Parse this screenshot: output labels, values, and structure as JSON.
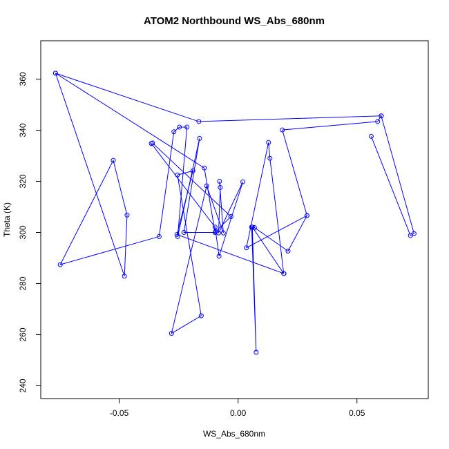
{
  "chart_data": {
    "type": "line",
    "title": "ATOM2 Northbound WS_Abs_680nm",
    "xlabel": "WS_Abs_680nm",
    "ylabel": "Theta (K)",
    "xlim": [
      -0.083,
      0.08
    ],
    "ylim": [
      235,
      375
    ],
    "x_ticks": [
      -0.05,
      0.0,
      0.05
    ],
    "x_tick_labels": [
      "-0.05",
      "0.00",
      "0.05"
    ],
    "y_ticks": [
      240,
      260,
      280,
      300,
      320,
      340,
      360
    ],
    "y_tick_labels": [
      "240",
      "260",
      "280",
      "300",
      "320",
      "340",
      "360"
    ],
    "grid": false,
    "line_color": "#0000ff",
    "marker": "open-circle",
    "series": [
      {
        "points": [
          {
            "x": -0.0768,
            "y": 362.3
          },
          {
            "x": -0.0478,
            "y": 282.9
          },
          {
            "x": -0.0467,
            "y": 306.8
          },
          {
            "x": -0.0525,
            "y": 328.2
          },
          {
            "x": -0.0748,
            "y": 287.4
          },
          {
            "x": -0.0332,
            "y": 298.4
          },
          {
            "x": -0.027,
            "y": 339.4
          },
          {
            "x": -0.0247,
            "y": 341.2
          },
          {
            "x": -0.0215,
            "y": 341.2
          },
          {
            "x": -0.0254,
            "y": 298.4
          },
          {
            "x": -0.0162,
            "y": 336.8
          },
          {
            "x": -0.0228,
            "y": 300.0
          },
          {
            "x": -0.0097,
            "y": 300.0
          },
          {
            "x": -0.0142,
            "y": 325.2
          },
          {
            "x": -0.0768,
            "y": 362.3
          },
          {
            "x": -0.0165,
            "y": 343.4
          },
          {
            "x": 0.0602,
            "y": 345.6
          },
          {
            "x": 0.0587,
            "y": 343.4
          },
          {
            "x": 0.0186,
            "y": 340.1
          },
          {
            "x": 0.029,
            "y": 306.6
          },
          {
            "x": 0.021,
            "y": 292.7
          },
          {
            "x": 0.0069,
            "y": 301.9
          },
          {
            "x": 0.0057,
            "y": 302.1
          },
          {
            "x": 0.0076,
            "y": 253.1
          },
          {
            "x": 0.006,
            "y": 302.1
          },
          {
            "x": 0.0192,
            "y": 283.9
          },
          {
            "x": 0.0134,
            "y": 329.0
          },
          {
            "x": 0.0128,
            "y": 335.2
          },
          {
            "x": 0.0035,
            "y": 294.0
          },
          {
            "x": 0.029,
            "y": 306.6
          }
        ]
      },
      {
        "points": [
          {
            "x": -0.0365,
            "y": 334.8
          },
          {
            "x": -0.0097,
            "y": 302.1
          },
          {
            "x": -0.008,
            "y": 290.7
          },
          {
            "x": 0.002,
            "y": 319.8
          },
          {
            "x": -0.0082,
            "y": 299.8
          },
          {
            "x": -0.0075,
            "y": 317.6
          },
          {
            "x": -0.0078,
            "y": 320.0
          },
          {
            "x": -0.0062,
            "y": 299.8
          },
          {
            "x": -0.0132,
            "y": 318.2
          },
          {
            "x": -0.028,
            "y": 260.5
          },
          {
            "x": -0.0155,
            "y": 267.4
          },
          {
            "x": -0.0255,
            "y": 322.5
          },
          {
            "x": -0.019,
            "y": 324.1
          },
          {
            "x": -0.0257,
            "y": 299.2
          },
          {
            "x": 0.0193,
            "y": 283.9
          }
        ]
      },
      {
        "points": [
          {
            "x": 0.056,
            "y": 337.6
          },
          {
            "x": 0.0725,
            "y": 298.8
          },
          {
            "x": 0.074,
            "y": 299.6
          },
          {
            "x": 0.0602,
            "y": 345.6
          }
        ]
      },
      {
        "points": [
          {
            "x": -0.036,
            "y": 335.0
          },
          {
            "x": -0.003,
            "y": 306.2
          },
          {
            "x": -0.0095,
            "y": 300.3
          }
        ]
      }
    ]
  }
}
